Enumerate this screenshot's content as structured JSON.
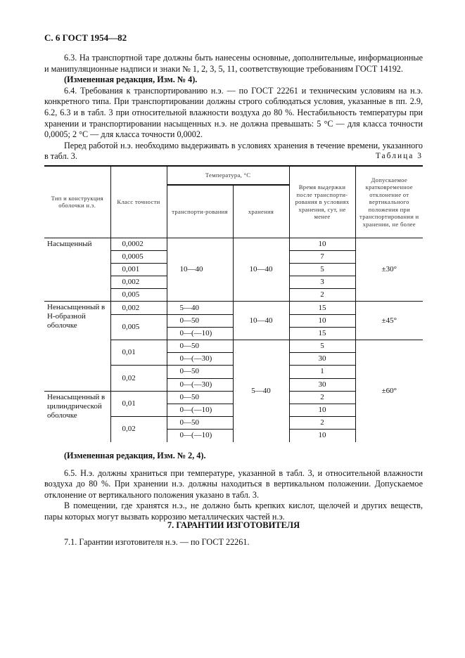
{
  "header": "С. 6 ГОСТ 1954—82",
  "paragraphs_top": [
    {
      "text": "6.3. На транспортной таре должны быть нанесены основные, дополнительные, информационные и манипуляционные надписи и знаки № 1, 2, 3, 5, 11, соответствующие требованиям ГОСТ 14192.",
      "bold": false
    },
    {
      "text": "(Измененная редакция, Изм. № 4).",
      "bold": true
    },
    {
      "text": "6.4. Требования к транспортированию н.э. — по ГОСТ 22261 и техническим условиям на н.э. конкретного типа. При транспортировании должны строго соблюдаться условия, указанные в пп. 2.9, 6.2, 6.3 и в табл. 3 при относительной влажности воздуха до 80 %. Нестабильность температуры при хранении и транспортировании насыщенных н.э. не должна превышать: 5 °С — для класса точности 0,0005; 2 °С — для класса точности 0,0002.",
      "bold": false
    },
    {
      "text": "Перед работой н.э. необходимо выдерживать в условиях хранения в течение времени, указанного в табл. 3.",
      "bold": false
    }
  ],
  "table": {
    "caption": "Таблица 3",
    "headers": {
      "type": "Тип и конструкция оболочки н.э.",
      "class": "Класс точности",
      "temperature": "Температура, °С",
      "transport": "транспорти-рования",
      "storage": "хранения",
      "time": "Время выдержки после транспорти-рования в условиях хранения, сут, не менее",
      "deviation": "Допускаемое кратковременное отклонение от вертикального положения при транспортировании и хранении, не более"
    },
    "rows": [
      {
        "type": "Насыщенный",
        "type_span": 5,
        "class": "0,0002",
        "class_span": 1,
        "transport": "10—40",
        "transport_span": 5,
        "storage": "10—40",
        "storage_span": 5,
        "time": "10",
        "deviation": "±30°",
        "deviation_span": 5
      },
      {
        "class": "0,0005",
        "class_span": 1,
        "time": "7"
      },
      {
        "class": "0,001",
        "class_span": 1,
        "time": "5"
      },
      {
        "class": "0,002",
        "class_span": 1,
        "time": "3"
      },
      {
        "class": "0,005",
        "class_span": 1,
        "time": "2"
      },
      {
        "type": "Ненасыщенный в Н-образной оболочке",
        "type_span": 7,
        "class": "0,002",
        "class_span": 1,
        "transport": "5—40",
        "transport_span": 1,
        "storage": "10—40",
        "storage_span": 3,
        "time": "15",
        "deviation": "±45°",
        "deviation_span": 3
      },
      {
        "class": "0,005",
        "class_span": 2,
        "transport": "0—50",
        "transport_span": 1,
        "time": "10"
      },
      {
        "transport": "0—(—10)",
        "transport_span": 1,
        "time": "15"
      },
      {
        "class": "0,01",
        "class_span": 2,
        "transport": "0—50",
        "transport_span": 1,
        "storage": "5—40",
        "storage_span": 8,
        "time": "5",
        "deviation": "±60°",
        "deviation_span": 8
      },
      {
        "transport": "0—(—30)",
        "transport_span": 1,
        "time": "30"
      },
      {
        "class": "0,02",
        "class_span": 2,
        "transport": "0—50",
        "transport_span": 1,
        "time": "1"
      },
      {
        "transport": "0—(—30)",
        "transport_span": 1,
        "time": "30"
      },
      {
        "type": "Ненасыщенный в цилиндрической оболочке",
        "type_span": 4,
        "class": "0,01",
        "class_span": 2,
        "transport": "0—50",
        "transport_span": 1,
        "time": "2"
      },
      {
        "transport": "0—(—10)",
        "transport_span": 1,
        "time": "10"
      },
      {
        "class": "0,02",
        "class_span": 2,
        "transport": "0—50",
        "transport_span": 1,
        "time": "2"
      },
      {
        "transport": "0—(—10)",
        "transport_span": 1,
        "time": "10"
      }
    ]
  },
  "paragraphs_bottom": [
    {
      "text": "(Измененная редакция, Изм. № 2, 4).",
      "bold": true
    },
    {
      "text": "6.5. Н.э. должны храниться при температуре, указанной в табл. 3, и относительной влажности воздуха до 80 %. При хранении н.э. должны находиться в вертикальном положении. Допускаемое отклонение от вертикального положения указано в табл. 3.",
      "bold": false
    },
    {
      "text": "В помещении, где хранятся н.э., не должно быть крепких кислот, щелочей и других веществ, пары которых могут вызвать коррозию металлических частей н.э.",
      "bold": false
    }
  ],
  "section_title": "7. ГАРАНТИИ ИЗГОТОВИТЕЛЯ",
  "paragraph_71": "7.1. Гарантии изготовителя н.э. — по ГОСТ 22261."
}
